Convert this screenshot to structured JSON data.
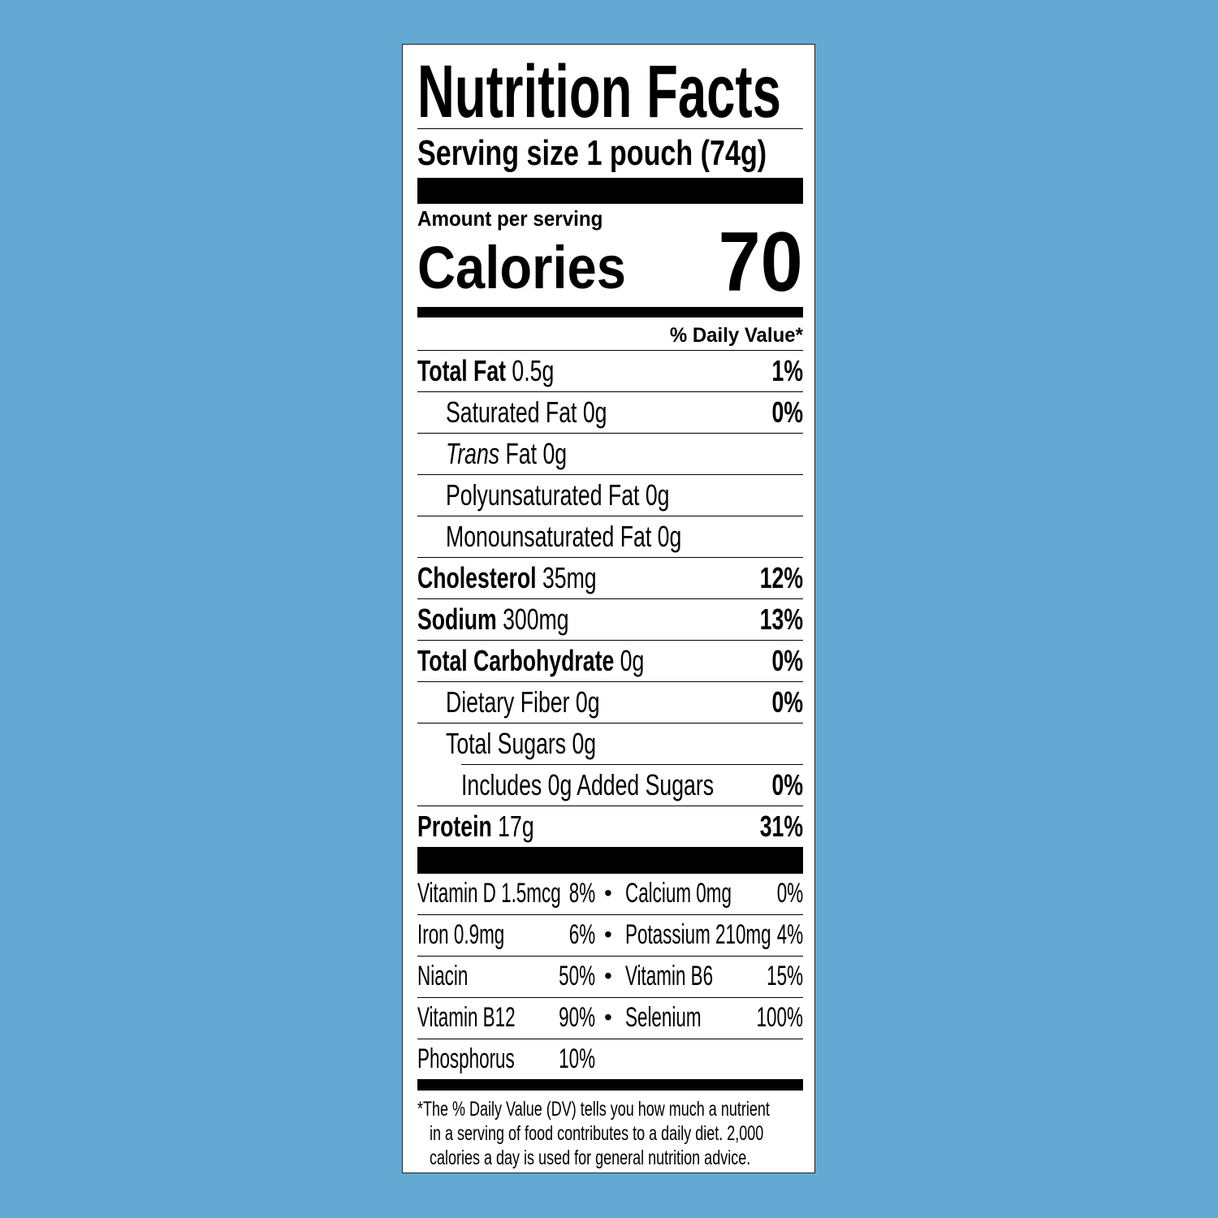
{
  "title": "Nutrition Facts",
  "serving_size": "Serving size 1 pouch (74g)",
  "amount_per_serving": "Amount per serving",
  "calories_label": "Calories",
  "calories_value": "70",
  "daily_value_header": "% Daily Value*",
  "nutrients": [
    {
      "name": "Total Fat",
      "amount": "0.5g",
      "dv": "1%",
      "level": 0
    },
    {
      "name": "Saturated Fat",
      "amount": "0g",
      "dv": "0%",
      "level": 1
    },
    {
      "name": "Trans",
      "suffix": "Fat",
      "amount": "0g",
      "dv": "",
      "level": 1,
      "italic": true
    },
    {
      "name": "Polyunsaturated Fat",
      "amount": "0g",
      "dv": "",
      "level": 1
    },
    {
      "name": "Monounsaturated Fat",
      "amount": "0g",
      "dv": "",
      "level": 1
    },
    {
      "name": "Cholesterol",
      "amount": "35mg",
      "dv": "12%",
      "level": 0
    },
    {
      "name": "Sodium",
      "amount": "300mg",
      "dv": "13%",
      "level": 0
    },
    {
      "name": "Total Carbohydrate",
      "amount": "0g",
      "dv": "0%",
      "level": 0
    },
    {
      "name": "Dietary Fiber",
      "amount": "0g",
      "dv": "0%",
      "level": 1
    },
    {
      "name": "Total Sugars",
      "amount": "0g",
      "dv": "",
      "level": 1
    },
    {
      "name": "Includes 0g Added Sugars",
      "amount": "",
      "dv": "0%",
      "level": 2
    },
    {
      "name": "Protein",
      "amount": "17g",
      "dv": "31%",
      "level": 0
    }
  ],
  "vitamins": [
    {
      "left_name": "Vitamin D 1.5mcg",
      "left_dv": "8%",
      "right_name": "Calcium 0mg",
      "right_dv": "0%"
    },
    {
      "left_name": "Iron 0.9mg",
      "left_dv": "6%",
      "right_name": "Potassium 210mg",
      "right_dv": "4%"
    },
    {
      "left_name": "Niacin",
      "left_dv": "50%",
      "right_name": "Vitamin B6",
      "right_dv": "15%"
    },
    {
      "left_name": "Vitamin B12",
      "left_dv": "90%",
      "right_name": "Selenium",
      "right_dv": "100%"
    },
    {
      "left_name": "Phosphorus",
      "left_dv": "10%",
      "right_name": "",
      "right_dv": ""
    }
  ],
  "bullet": "•",
  "footnote": [
    "*The % Daily Value (DV) tells you how much a nutrient",
    "in a serving of food contributes to a daily diet. 2,000",
    "calories a day is used for general nutrition advice."
  ],
  "colors": {
    "background": "#63a9d3",
    "label": "#ffffff",
    "ink": "#000000"
  }
}
